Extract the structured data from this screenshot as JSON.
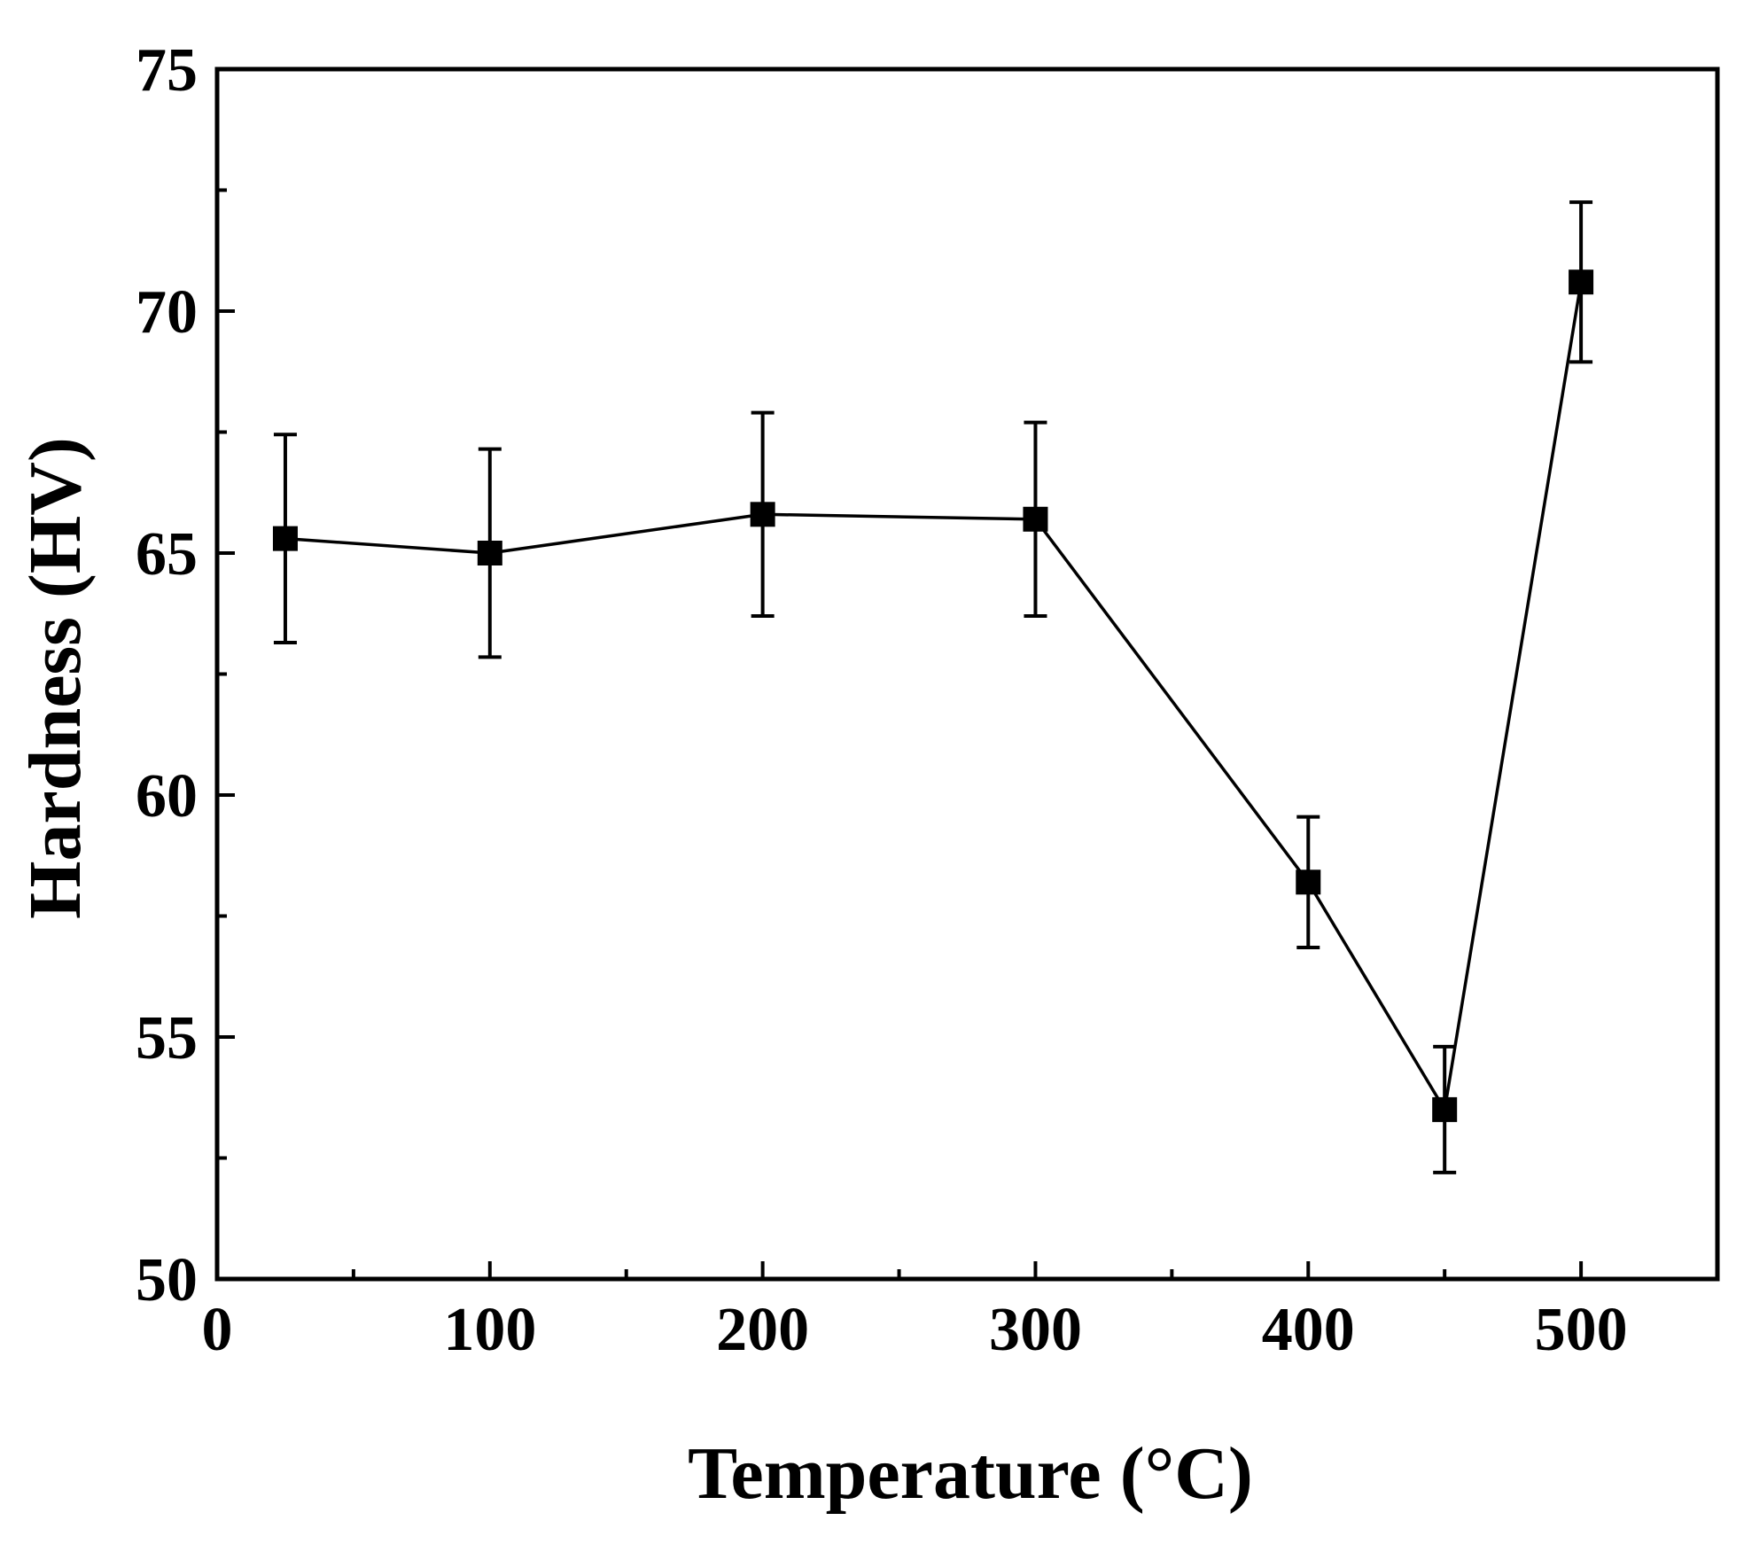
{
  "chart_data": {
    "type": "line",
    "title": "",
    "xlabel": "Temperature (°C)",
    "ylabel": "Hardness (HV)",
    "xlim": [
      0,
      550
    ],
    "ylim": [
      50,
      75
    ],
    "x_ticks": [
      0,
      100,
      200,
      300,
      400,
      500
    ],
    "x_tick_labels": [
      "0",
      "100",
      "200",
      "300",
      "400",
      "500"
    ],
    "x_minor_ticks": [
      50,
      150,
      250,
      350,
      450,
      550
    ],
    "y_ticks": [
      50,
      55,
      60,
      65,
      70,
      75
    ],
    "y_tick_labels": [
      "50",
      "55",
      "60",
      "65",
      "70",
      "75"
    ],
    "y_minor_ticks": [
      52.5,
      57.5,
      62.5,
      67.5,
      72.5
    ],
    "grid": false,
    "series": [
      {
        "name": "Hardness",
        "marker": "square",
        "color": "#000000",
        "x": [
          25,
          100,
          200,
          300,
          400,
          450,
          500
        ],
        "values": [
          65.3,
          65.0,
          65.8,
          65.7,
          58.2,
          53.5,
          70.6
        ],
        "error": [
          2.15,
          2.15,
          2.1,
          2.0,
          1.35,
          1.3,
          1.65
        ]
      }
    ]
  }
}
